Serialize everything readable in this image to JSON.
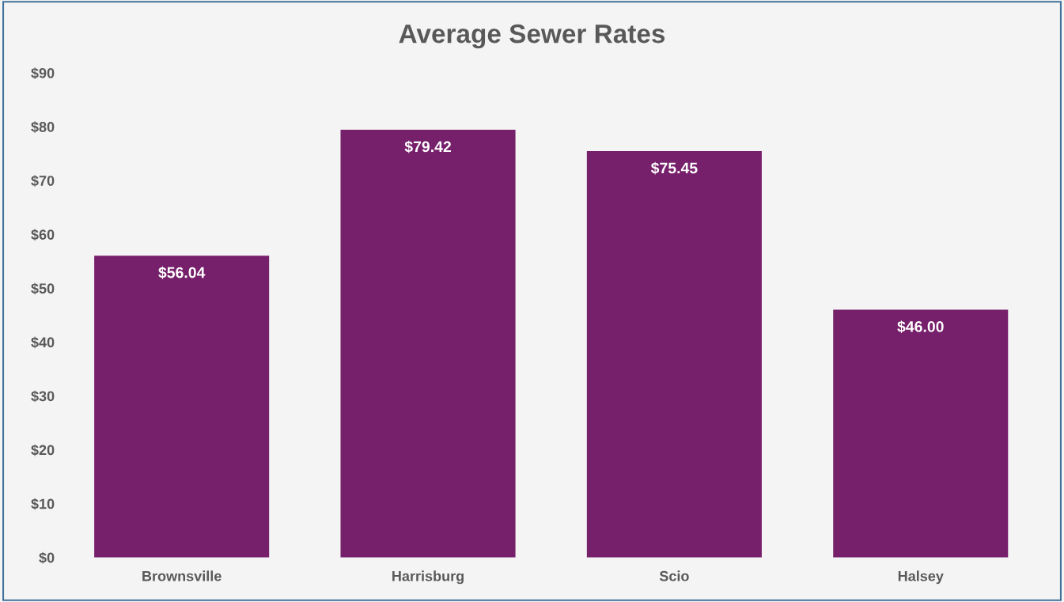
{
  "chart_data": {
    "type": "bar",
    "title": "Average Sewer Rates",
    "categories": [
      "Brownsville",
      "Harrisburg",
      "Scio",
      "Halsey"
    ],
    "values": [
      56.04,
      79.42,
      75.45,
      46.0
    ],
    "value_labels": [
      "$56.04",
      "$79.42",
      "$75.45",
      "$46.00"
    ],
    "color": "#761f6b",
    "ylim": [
      0,
      90
    ],
    "yticks": [
      {
        "value": 0,
        "label": "$0"
      },
      {
        "value": 10,
        "label": "$10"
      },
      {
        "value": 20,
        "label": "$20"
      },
      {
        "value": 30,
        "label": "$30"
      },
      {
        "value": 40,
        "label": "$40"
      },
      {
        "value": 50,
        "label": "$50"
      },
      {
        "value": 60,
        "label": "$60"
      },
      {
        "value": 70,
        "label": "$70"
      },
      {
        "value": 80,
        "label": "$80"
      },
      {
        "value": 90,
        "label": "$90"
      }
    ],
    "grid": false
  }
}
